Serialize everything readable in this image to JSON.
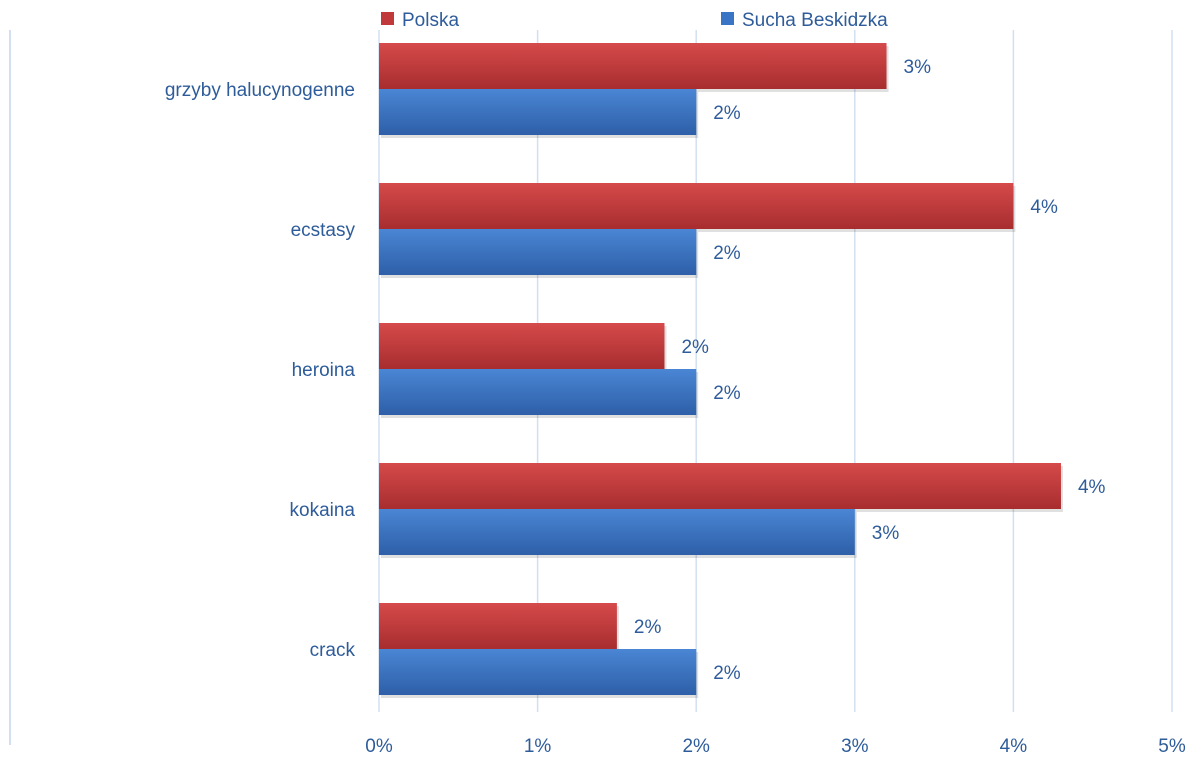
{
  "chart_data": {
    "type": "bar",
    "orientation": "horizontal",
    "categories": [
      "grzyby halucynogenne",
      "ecstasy",
      "heroina",
      "kokaina",
      "crack"
    ],
    "series": [
      {
        "name": "Polska",
        "color": "#c0393b",
        "values": [
          3.2,
          4.0,
          1.8,
          4.3,
          1.5
        ],
        "labels": [
          "3%",
          "4%",
          "2%",
          "4%",
          "2%"
        ]
      },
      {
        "name": "Sucha Beskidzka",
        "color": "#3a74c4",
        "values": [
          2.0,
          2.0,
          2.0,
          3.0,
          2.0
        ],
        "labels": [
          "2%",
          "2%",
          "2%",
          "3%",
          "2%"
        ]
      }
    ],
    "xlim": [
      0,
      5
    ],
    "x_ticks": [
      "0%",
      "1%",
      "2%",
      "3%",
      "4%",
      "5%"
    ],
    "grid": true,
    "legend_position": "top",
    "text_color": "#2e5c9a",
    "grid_color": "#d3dff0"
  }
}
